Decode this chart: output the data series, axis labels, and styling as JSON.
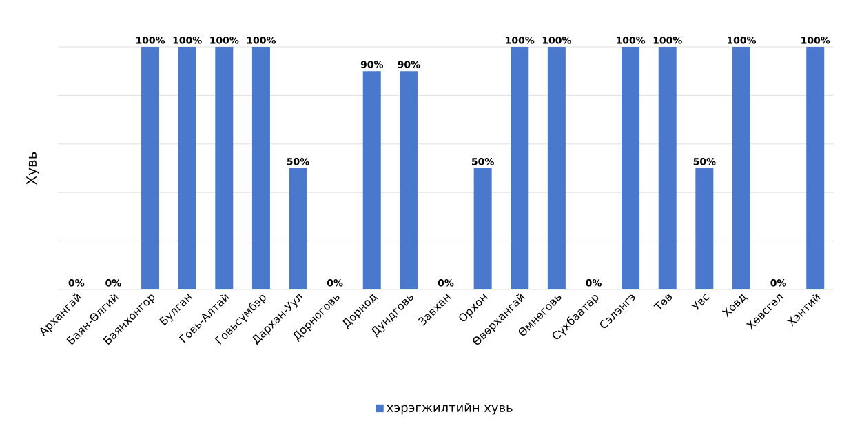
{
  "chart_data": {
    "type": "bar",
    "ylabel": "Хувь",
    "categories": [
      "Архангай",
      "Баян-Өлгий",
      "Баянхонгор",
      "Булган",
      "Говь-Алтай",
      "Говьсүмбэр",
      "Дархан-Уул",
      "Дорноговь",
      "Дорнод",
      "Дундговь",
      "Завхан",
      "Орхон",
      "Өвөрхангай",
      "Өмнөговь",
      "Сүхбаатар",
      "Сэлэнгэ",
      "Төв",
      "Увс",
      "Ховд",
      "Хөвсгөл",
      "Хэнтий"
    ],
    "series": [
      {
        "name": "хэрэгжилтийн  хувь",
        "color": "#4a78cc",
        "values": [
          0,
          0,
          100,
          100,
          100,
          100,
          50,
          0,
          90,
          90,
          0,
          50,
          100,
          100,
          0,
          100,
          100,
          50,
          100,
          0,
          100
        ],
        "value_labels": [
          "0%",
          "0%",
          "100%",
          "100%",
          "100%",
          "100%",
          "50%",
          "0%",
          "90%",
          "90%",
          "0%",
          "50%",
          "100%",
          "100%",
          "0%",
          "100%",
          "100%",
          "50%",
          "100%",
          "0%",
          "100%"
        ]
      }
    ],
    "ylim": [
      0,
      100
    ],
    "yticks": [
      {
        "value": 0,
        "label": null
      },
      {
        "value": 20,
        "label": null
      },
      {
        "value": 40,
        "label": null
      },
      {
        "value": 60,
        "label": null
      },
      {
        "value": 80,
        "label": null
      },
      {
        "value": 100,
        "label": null
      }
    ],
    "tick_labels": "x",
    "grid": "y",
    "legend": "bottom"
  }
}
